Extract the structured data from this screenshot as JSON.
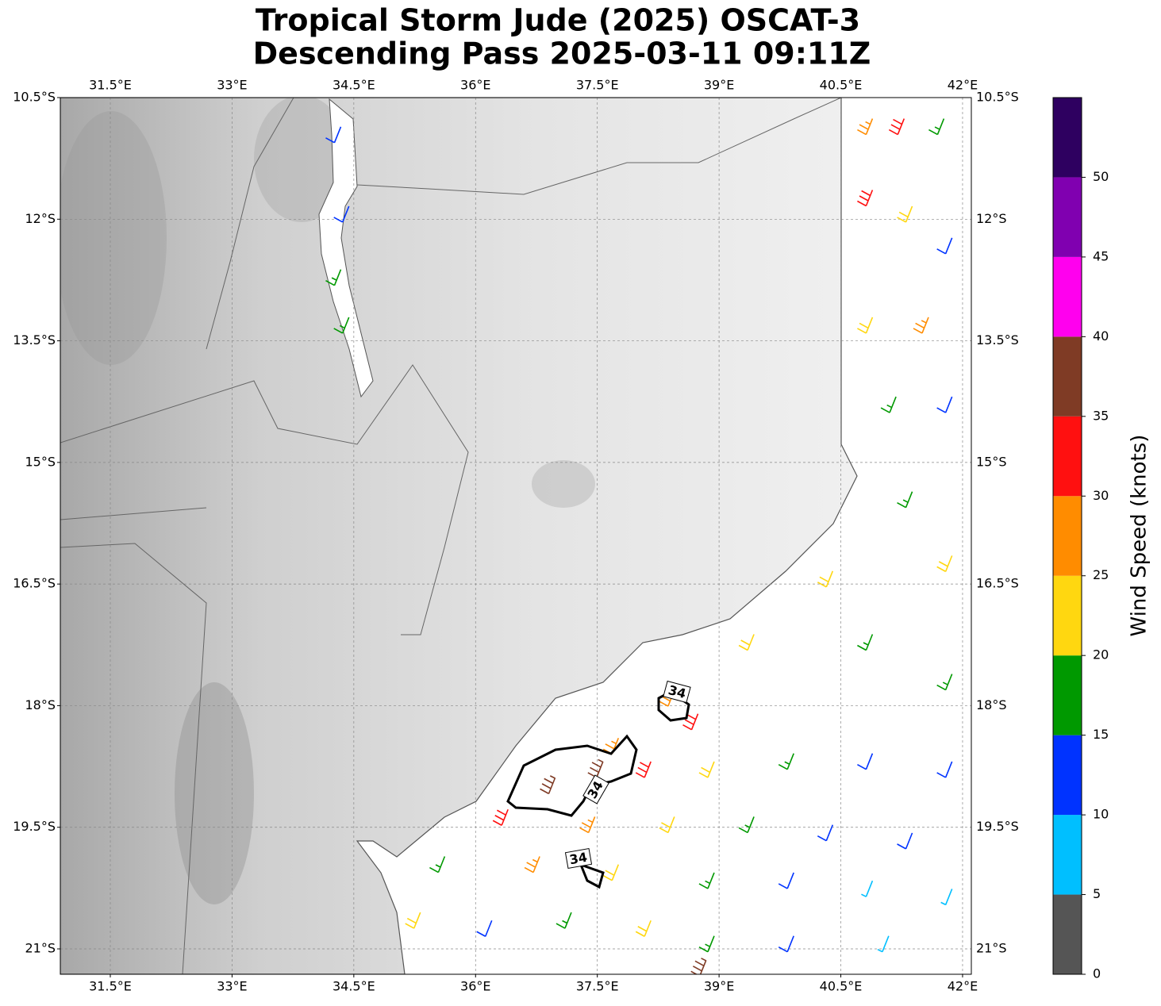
{
  "chart_data": {
    "type": "barbs",
    "title": [
      "Tropical Storm Jude (2025) OSCAT-3",
      "Descending Pass 2025-03-11 09:11Z"
    ],
    "xlim": [
      30.884,
      42.108
    ],
    "ylim": [
      -21.313,
      -10.5
    ],
    "xticks": [
      {
        "value": 31.5,
        "label": "31.5°E"
      },
      {
        "value": 33,
        "label": "33°E"
      },
      {
        "value": 34.5,
        "label": "34.5°E"
      },
      {
        "value": 36,
        "label": "36°E"
      },
      {
        "value": 37.5,
        "label": "37.5°E"
      },
      {
        "value": 39,
        "label": "39°E"
      },
      {
        "value": 40.5,
        "label": "40.5°E"
      },
      {
        "value": 42,
        "label": "42°E"
      }
    ],
    "yticks": [
      {
        "value": -10.5,
        "label": "10.5°S"
      },
      {
        "value": -12,
        "label": "12°S"
      },
      {
        "value": -13.5,
        "label": "13.5°S"
      },
      {
        "value": -15,
        "label": "15°S"
      },
      {
        "value": -16.5,
        "label": "16.5°S"
      },
      {
        "value": -18,
        "label": "18°S"
      },
      {
        "value": -19.5,
        "label": "19.5°S"
      },
      {
        "value": -21,
        "label": "21°S"
      }
    ],
    "grid": true,
    "barbs": {
      "lon": [
        34.34,
        34.44,
        34.34,
        34.44,
        40.89,
        41.28,
        41.77,
        40.89,
        41.38,
        41.87,
        40.89,
        41.58,
        41.18,
        41.87,
        41.38,
        41.87,
        40.4,
        39.43,
        40.89,
        41.87,
        38.45,
        38.74,
        37.76,
        36.98,
        37.57,
        38.16,
        38.94,
        39.92,
        40.89,
        41.87,
        36.4,
        37.47,
        38.45,
        39.43,
        40.4,
        41.38,
        35.62,
        36.79,
        37.76,
        38.94,
        39.92,
        40.89,
        41.87,
        35.32,
        36.2,
        37.18,
        38.16,
        38.94,
        39.92,
        41.09,
        38.84
      ],
      "lat": [
        -10.86,
        -11.84,
        -12.62,
        -13.21,
        -10.76,
        -10.76,
        -10.76,
        -11.64,
        -11.84,
        -12.23,
        -13.21,
        -13.21,
        -14.19,
        -14.19,
        -15.36,
        -16.15,
        -16.34,
        -17.12,
        -17.12,
        -17.61,
        -17.81,
        -18.1,
        -18.4,
        -18.89,
        -18.69,
        -18.69,
        -18.69,
        -18.59,
        -18.59,
        -18.69,
        -19.28,
        -19.37,
        -19.37,
        -19.37,
        -19.47,
        -19.57,
        -19.86,
        -19.86,
        -19.96,
        -20.06,
        -20.06,
        -20.16,
        -20.26,
        -20.55,
        -20.65,
        -20.55,
        -20.65,
        -20.84,
        -20.84,
        -20.84,
        -21.14
      ],
      "speed": [
        12,
        12,
        17,
        17,
        27,
        32,
        17,
        32,
        22,
        12,
        22,
        27,
        17,
        12,
        17,
        22,
        22,
        22,
        17,
        17,
        27,
        32,
        27,
        37,
        37,
        32,
        22,
        17,
        12,
        12,
        32,
        27,
        22,
        17,
        12,
        12,
        17,
        27,
        22,
        17,
        12,
        7,
        7,
        22,
        12,
        17,
        22,
        17,
        12,
        7,
        37
      ]
    },
    "contour_labels": [
      "34",
      "34",
      "34"
    ],
    "colorbar": {
      "label": "Wind Speed (knots)",
      "clim": [
        0,
        55
      ],
      "colors": [
        "#555555",
        "#00bfff",
        "#0033ff",
        "#009900",
        "#ffd710",
        "#ff8c00",
        "#ff1010",
        "#7f3b25",
        "#ff00ee",
        "#8000b0",
        "#2e0060"
      ],
      "ticks": [
        0,
        5,
        10,
        15,
        20,
        25,
        30,
        35,
        40,
        45,
        50
      ]
    }
  }
}
